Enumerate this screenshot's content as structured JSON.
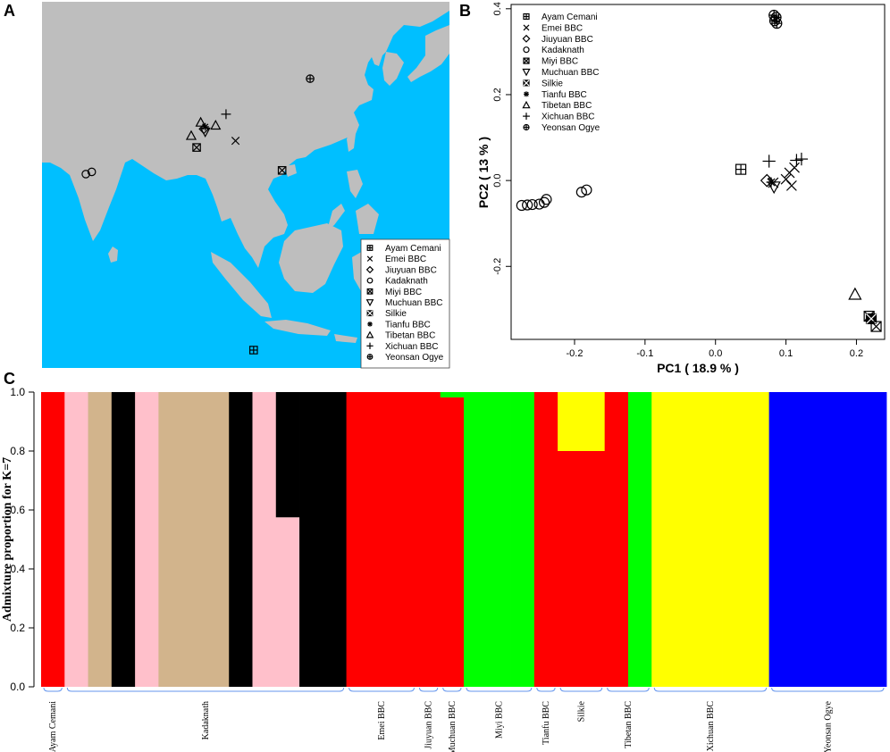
{
  "panels": {
    "a": "A",
    "b": "B",
    "c": "C"
  },
  "populations": [
    "Ayam Cemani",
    "Emei BBC",
    "Jiuyuan BBC",
    "Kadaknath",
    "Miyi BBC",
    "Muchuan BBC",
    "Silkie",
    "Tianfu BBC",
    "Tibetan BBC",
    "Xichuan BBC",
    "Yeonsan Ogye"
  ],
  "symbols": {
    "Ayam Cemani": "square-plus",
    "Emei BBC": "x",
    "Jiuyuan BBC": "diamond",
    "Kadaknath": "circle",
    "Miyi BBC": "square-x",
    "Muchuan BBC": "triangle-down",
    "Silkie": "square-x-filled",
    "Tianfu BBC": "asterisk",
    "Tibetan BBC": "triangle-up",
    "Xichuan BBC": "plus",
    "Yeonsan Ogye": "circle-plus"
  },
  "colors": {
    "sea": "#00BFFF",
    "land": "#BEBEBE",
    "red": "#FF0000",
    "pink": "#FFC0CB",
    "tan": "#D2B48C",
    "black": "#000000",
    "green": "#00FF00",
    "yellow": "#FFFF00",
    "blue": "#0000FF",
    "bracket": "#6495ED"
  },
  "chart_data": [
    {
      "type": "map",
      "panel": "A",
      "legend_placement": "bottom-right",
      "markers": [
        {
          "population": "Kadaknath",
          "lon": 77.5,
          "lat": 23.3
        },
        {
          "population": "Kadaknath",
          "lon": 78.8,
          "lat": 23.6
        },
        {
          "population": "Tibetan BBC",
          "lon": 102.9,
          "lat": 30.3
        },
        {
          "population": "Tibetan BBC",
          "lon": 100.8,
          "lat": 28.5
        },
        {
          "population": "Tibetan BBC",
          "lon": 106.2,
          "lat": 29.9
        },
        {
          "population": "Tianfu BBC",
          "lon": 103.9,
          "lat": 29.7
        },
        {
          "population": "Jiuyuan BBC",
          "lon": 103.6,
          "lat": 29.4
        },
        {
          "population": "Muchuan BBC",
          "lon": 103.9,
          "lat": 29.0
        },
        {
          "population": "Miyi BBC",
          "lon": 102.0,
          "lat": 26.9
        },
        {
          "population": "Xichuan BBC",
          "lon": 108.5,
          "lat": 31.4
        },
        {
          "population": "Emei BBC",
          "lon": 110.6,
          "lat": 27.8
        },
        {
          "population": "Miyi BBC",
          "lon": 120.9,
          "lat": 23.8
        },
        {
          "population": "Yeonsan Ogye",
          "lon": 127.1,
          "lat": 36.2
        },
        {
          "population": "Ayam Cemani",
          "lon": 114.6,
          "lat": -0.5
        }
      ]
    },
    {
      "type": "scatter",
      "panel": "B",
      "xlabel": "PC1 ( 18.9 % )",
      "ylabel": "PC2 ( 13 % )",
      "xlim": [
        -0.29,
        0.24
      ],
      "ylim": [
        -0.37,
        0.41
      ],
      "xticks": [
        -0.2,
        -0.1,
        0.0,
        0.1,
        0.2
      ],
      "xtick_labels": [
        "-0.2",
        "-0.1",
        "0.0",
        "0.1",
        "0.2"
      ],
      "yticks": [
        -0.2,
        0.0,
        0.2,
        0.4
      ],
      "ytick_labels": [
        "-0.2",
        "0.0",
        "0.2",
        "0.4"
      ],
      "legend_placement": "top-left",
      "points": [
        {
          "population": "Kadaknath",
          "x": -0.275,
          "y": -0.058
        },
        {
          "population": "Kadaknath",
          "x": -0.267,
          "y": -0.057
        },
        {
          "population": "Kadaknath",
          "x": -0.26,
          "y": -0.056
        },
        {
          "population": "Kadaknath",
          "x": -0.25,
          "y": -0.055
        },
        {
          "population": "Kadaknath",
          "x": -0.243,
          "y": -0.051
        },
        {
          "population": "Kadaknath",
          "x": -0.24,
          "y": -0.044
        },
        {
          "population": "Kadaknath",
          "x": -0.19,
          "y": -0.027
        },
        {
          "population": "Kadaknath",
          "x": -0.183,
          "y": -0.022
        },
        {
          "population": "Yeonsan Ogye",
          "x": 0.083,
          "y": 0.385
        },
        {
          "population": "Yeonsan Ogye",
          "x": 0.086,
          "y": 0.38
        },
        {
          "population": "Yeonsan Ogye",
          "x": 0.084,
          "y": 0.372
        },
        {
          "population": "Yeonsan Ogye",
          "x": 0.087,
          "y": 0.366
        },
        {
          "population": "Ayam Cemani",
          "x": 0.036,
          "y": 0.026
        },
        {
          "population": "Xichuan BBC",
          "x": 0.076,
          "y": 0.045
        },
        {
          "population": "Xichuan BBC",
          "x": 0.115,
          "y": 0.047
        },
        {
          "population": "Xichuan BBC",
          "x": 0.122,
          "y": 0.05
        },
        {
          "population": "Jiuyuan BBC",
          "x": 0.073,
          "y": 0.0
        },
        {
          "population": "Tianfu BBC",
          "x": 0.079,
          "y": -0.004
        },
        {
          "population": "Muchuan BBC",
          "x": 0.083,
          "y": -0.015
        },
        {
          "population": "Emei BBC",
          "x": 0.082,
          "y": -0.005
        },
        {
          "population": "Emei BBC",
          "x": 0.1,
          "y": 0.003
        },
        {
          "population": "Emei BBC",
          "x": 0.105,
          "y": 0.018
        },
        {
          "population": "Emei BBC",
          "x": 0.108,
          "y": -0.012
        },
        {
          "population": "Emei BBC",
          "x": 0.112,
          "y": 0.03
        },
        {
          "population": "Tibetan BBC",
          "x": 0.198,
          "y": -0.265
        },
        {
          "population": "Miyi BBC",
          "x": 0.218,
          "y": -0.316
        },
        {
          "population": "Silkie",
          "x": 0.221,
          "y": -0.322
        },
        {
          "population": "Miyi BBC",
          "x": 0.228,
          "y": -0.34
        }
      ]
    },
    {
      "type": "bar",
      "stacked": true,
      "panel": "C",
      "ylabel": "Admixture proportion for K=7",
      "ylim": [
        0,
        1
      ],
      "yticks": [
        0,
        0.2,
        0.4,
        0.6,
        0.8,
        1.0
      ],
      "ytick_labels": [
        "0.0",
        "0.2",
        "0.4",
        "0.6",
        "0.8",
        "1.0"
      ],
      "groups": [
        {
          "label": "Ayam Cemani",
          "n": 1
        },
        {
          "label": "Kadaknath",
          "n": 12
        },
        {
          "label": "Emei BBC",
          "n": 3
        },
        {
          "label": "Jiuyuan BBC",
          "n": 1
        },
        {
          "label": "Muchuan BBC",
          "n": 1
        },
        {
          "label": "Miyi BBC",
          "n": 3
        },
        {
          "label": "Tianfu BBC",
          "n": 1
        },
        {
          "label": "Silkie",
          "n": 2
        },
        {
          "label": "Tibetan BBC",
          "n": 2
        },
        {
          "label": "Xichuan BBC",
          "n": 5
        },
        {
          "label": "Yeonsan Ogye",
          "n": 5
        }
      ],
      "individuals": [
        [
          [
            "red",
            1.0
          ]
        ],
        [
          [
            "pink",
            1.0
          ]
        ],
        [
          [
            "tan",
            1.0
          ]
        ],
        [
          [
            "black",
            1.0
          ]
        ],
        [
          [
            "pink",
            1.0
          ]
        ],
        [
          [
            "tan",
            1.0
          ]
        ],
        [
          [
            "tan",
            1.0
          ]
        ],
        [
          [
            "tan",
            1.0
          ]
        ],
        [
          [
            "black",
            1.0
          ]
        ],
        [
          [
            "pink",
            1.0
          ]
        ],
        [
          [
            "pink",
            0.575
          ],
          [
            "black",
            0.425
          ]
        ],
        [
          [
            "black",
            1.0
          ]
        ],
        [
          [
            "black",
            1.0
          ]
        ],
        [
          [
            "red",
            1.0
          ]
        ],
        [
          [
            "red",
            1.0
          ]
        ],
        [
          [
            "red",
            1.0
          ]
        ],
        [
          [
            "red",
            1.0
          ]
        ],
        [
          [
            "red",
            0.982
          ],
          [
            "green",
            0.018
          ]
        ],
        [
          [
            "green",
            1.0
          ]
        ],
        [
          [
            "green",
            1.0
          ]
        ],
        [
          [
            "green",
            1.0
          ]
        ],
        [
          [
            "red",
            1.0
          ]
        ],
        [
          [
            "red",
            0.8
          ],
          [
            "yellow",
            0.2
          ]
        ],
        [
          [
            "red",
            0.8
          ],
          [
            "yellow",
            0.2
          ]
        ],
        [
          [
            "red",
            1.0
          ]
        ],
        [
          [
            "green",
            1.0
          ]
        ],
        [
          [
            "yellow",
            1.0
          ]
        ],
        [
          [
            "yellow",
            1.0
          ]
        ],
        [
          [
            "yellow",
            1.0
          ]
        ],
        [
          [
            "yellow",
            1.0
          ]
        ],
        [
          [
            "yellow",
            1.0
          ]
        ],
        [
          [
            "blue",
            1.0
          ]
        ],
        [
          [
            "blue",
            1.0
          ]
        ],
        [
          [
            "blue",
            1.0
          ]
        ],
        [
          [
            "blue",
            1.0
          ]
        ],
        [
          [
            "blue",
            1.0
          ]
        ]
      ]
    }
  ]
}
